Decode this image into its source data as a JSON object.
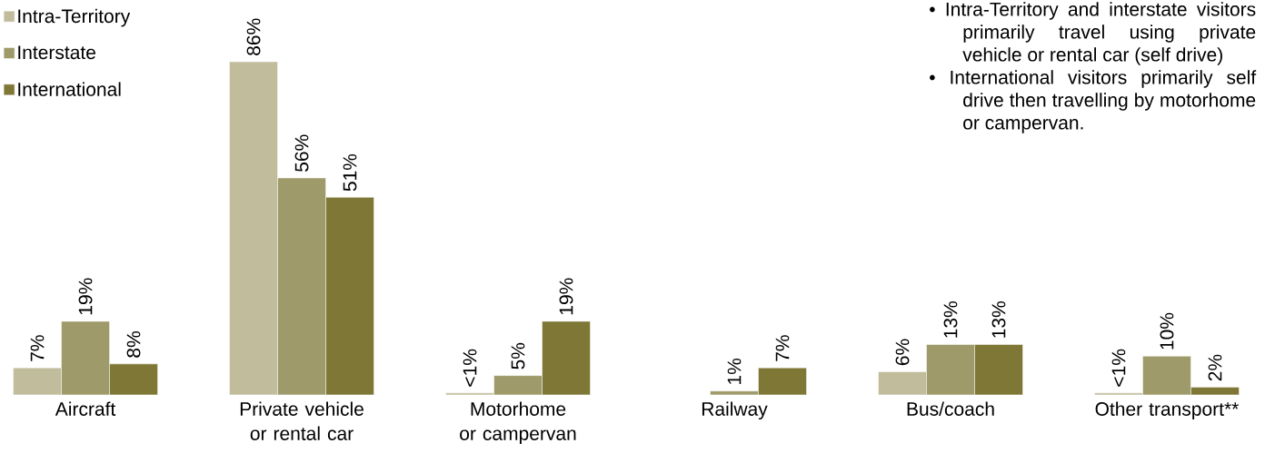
{
  "chart_data": {
    "type": "bar",
    "categories": [
      "Aircraft",
      "Private vehicle or rental car",
      "Motorhome or campervan",
      "Railway",
      "Bus/coach",
      "Other transport**"
    ],
    "series": [
      {
        "name": "Intra-Territory",
        "color": "#c0bc9c",
        "values": [
          7,
          86,
          0.5,
          null,
          6,
          0.5
        ],
        "value_labels": [
          "7%",
          "86%",
          "<1%",
          null,
          "6%",
          "<1%"
        ]
      },
      {
        "name": "Interstate",
        "color": "#9e9a6a",
        "values": [
          19,
          56,
          5,
          1,
          13,
          10
        ],
        "value_labels": [
          "19%",
          "56%",
          "5%",
          "1%",
          "13%",
          "10%"
        ]
      },
      {
        "name": "International",
        "color": "#7f7735",
        "values": [
          8,
          51,
          19,
          7,
          13,
          2
        ],
        "value_labels": [
          "8%",
          "51%",
          "19%",
          "7%",
          "13%",
          "2%"
        ]
      }
    ],
    "legend": "top left",
    "annotations": [
      "• Intra-Territory and interstate visitors primarily travel using private vehicle or rental car (self drive)",
      "• International visitors primarily self drive then travelling by motorhome or campervan."
    ]
  }
}
